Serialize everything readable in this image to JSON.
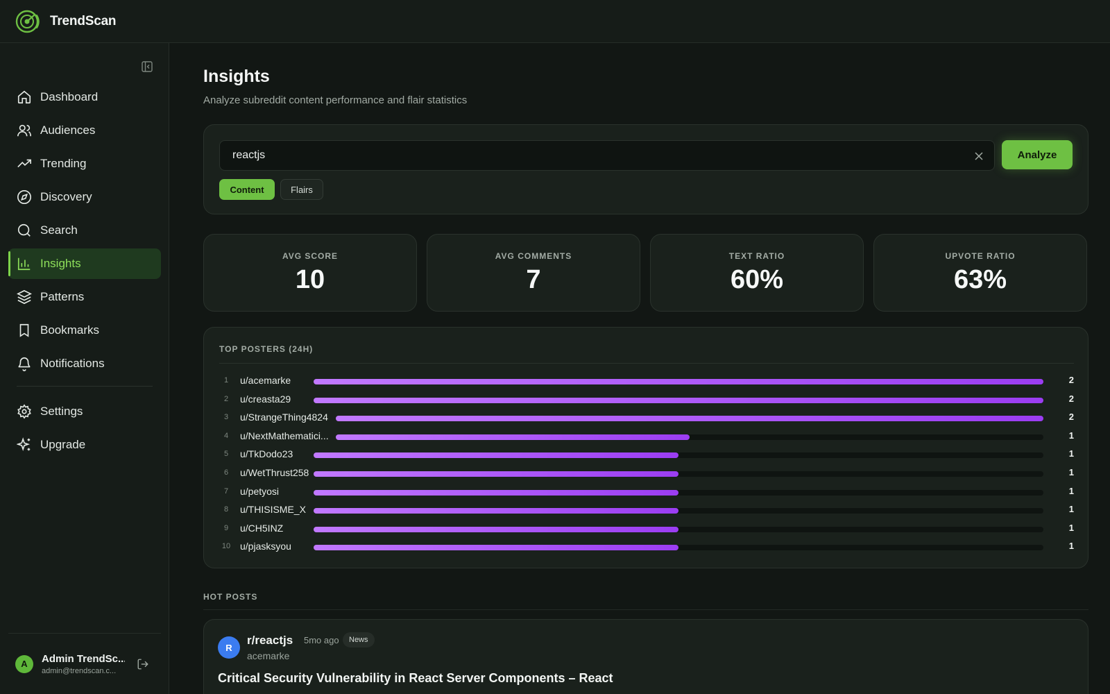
{
  "app": {
    "brand": "TrendScan"
  },
  "sidebar": {
    "items": [
      {
        "label": "Dashboard",
        "icon": "home-icon"
      },
      {
        "label": "Audiences",
        "icon": "users-icon"
      },
      {
        "label": "Trending",
        "icon": "trending-icon"
      },
      {
        "label": "Discovery",
        "icon": "compass-icon"
      },
      {
        "label": "Search",
        "icon": "search-icon"
      },
      {
        "label": "Insights",
        "icon": "bar-chart-icon",
        "active": true
      },
      {
        "label": "Patterns",
        "icon": "layers-icon"
      },
      {
        "label": "Bookmarks",
        "icon": "bookmark-icon"
      },
      {
        "label": "Notifications",
        "icon": "bell-icon"
      }
    ],
    "secondary_items": [
      {
        "label": "Settings",
        "icon": "gear-icon"
      },
      {
        "label": "Upgrade",
        "icon": "sparkles-icon"
      }
    ],
    "user": {
      "initial": "A",
      "name": "Admin TrendSc...",
      "email": "admin@trendscan.c..."
    }
  },
  "page": {
    "title": "Insights",
    "subtitle": "Analyze subreddit content performance and flair statistics"
  },
  "search": {
    "value": "reactjs",
    "analyze_label": "Analyze",
    "tabs": [
      {
        "label": "Content",
        "active": true
      },
      {
        "label": "Flairs",
        "active": false
      }
    ]
  },
  "stats": [
    {
      "label": "AVG SCORE",
      "value": "10"
    },
    {
      "label": "AVG COMMENTS",
      "value": "7"
    },
    {
      "label": "TEXT RATIO",
      "value": "60%"
    },
    {
      "label": "UPVOTE RATIO",
      "value": "63%"
    }
  ],
  "top_posters": {
    "title": "TOP POSTERS (24H)",
    "max": 2,
    "rows": [
      {
        "rank": "1",
        "name": "u/acemarke",
        "count": 2
      },
      {
        "rank": "2",
        "name": "u/creasta29",
        "count": 2
      },
      {
        "rank": "3",
        "name": "u/StrangeThing4824",
        "count": 2
      },
      {
        "rank": "4",
        "name": "u/NextMathematici...",
        "count": 1
      },
      {
        "rank": "5",
        "name": "u/TkDodo23",
        "count": 1
      },
      {
        "rank": "6",
        "name": "u/WetThrust258",
        "count": 1
      },
      {
        "rank": "7",
        "name": "u/petyosi",
        "count": 1
      },
      {
        "rank": "8",
        "name": "u/THISISME_X",
        "count": 1
      },
      {
        "rank": "9",
        "name": "u/CH5INZ",
        "count": 1
      },
      {
        "rank": "10",
        "name": "u/pjasksyou",
        "count": 1
      }
    ]
  },
  "hot_posts": {
    "title": "HOT POSTS",
    "posts": [
      {
        "avatar": "R",
        "subreddit": "r/reactjs",
        "time": "5mo ago",
        "flair": "News",
        "author": "acemarke",
        "title": "Critical Security Vulnerability in React Server Components – React"
      }
    ]
  },
  "colors": {
    "accent": "#6ec043",
    "bar": "#a855f7",
    "background": "#121714"
  }
}
